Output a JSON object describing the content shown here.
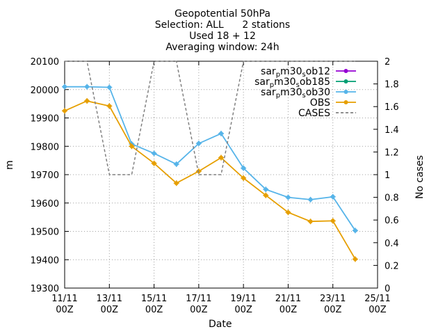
{
  "chart_data": {
    "type": "line",
    "title_lines": [
      "Geopotential 50hPa",
      "Selection: ALL      2 stations",
      "Used 18 + 12",
      "Averaging window: 24h"
    ],
    "xlabel": "Date",
    "ylabel": "m",
    "y2label": "No cases",
    "xlim": [
      0,
      14
    ],
    "ylim": [
      19300,
      20100
    ],
    "y2lim": [
      0,
      2
    ],
    "x_tick_positions": [
      0,
      2,
      4,
      6,
      8,
      10,
      12,
      14
    ],
    "x_tick_labels": [
      [
        "11/11",
        "00Z"
      ],
      [
        "13/11",
        "00Z"
      ],
      [
        "15/11",
        "00Z"
      ],
      [
        "17/11",
        "00Z"
      ],
      [
        "19/11",
        "00Z"
      ],
      [
        "21/11",
        "00Z"
      ],
      [
        "23/11",
        "00Z"
      ],
      [
        "25/11",
        "00Z"
      ]
    ],
    "y_ticks": [
      19300,
      19400,
      19500,
      19600,
      19700,
      19800,
      19900,
      20000,
      20100
    ],
    "y2_ticks": [
      0,
      0.2,
      0.4,
      0.6,
      0.8,
      1,
      1.2,
      1.4,
      1.6,
      1.8,
      2
    ],
    "y2_tick_labels": [
      "0",
      "0.2",
      "0.4",
      "0.6",
      "0.8",
      "1",
      "1.2",
      "1.4",
      "1.6",
      "1.8",
      "2"
    ],
    "grid": true,
    "legend_position": "top-right",
    "series": [
      {
        "name_main": "sar",
        "name_parts": [
          [
            "sar",
            ""
          ],
          [
            "p",
            "sub"
          ],
          [
            "m30",
            ""
          ],
          [
            "s",
            "sub"
          ],
          [
            "ob12",
            ""
          ]
        ],
        "color": "#9400d3",
        "x": [],
        "values": []
      },
      {
        "name_main": "sar",
        "name_parts": [
          [
            "sar",
            ""
          ],
          [
            "p",
            "sub"
          ],
          [
            "m30",
            ""
          ],
          [
            "s",
            "sub"
          ],
          [
            "ob185",
            ""
          ]
        ],
        "color": "#009e73",
        "x": [],
        "values": []
      },
      {
        "name_main": "sar",
        "name_parts": [
          [
            "sar",
            ""
          ],
          [
            "p",
            "sub"
          ],
          [
            "m30",
            ""
          ],
          [
            "s",
            "sub"
          ],
          [
            "ob30",
            ""
          ]
        ],
        "color": "#56b4e9",
        "x": [
          0,
          1,
          2,
          3,
          4,
          5,
          6,
          7,
          8,
          9,
          10,
          11,
          12,
          13
        ],
        "values": [
          20010,
          20010,
          20008,
          19808,
          19775,
          19737,
          19810,
          19845,
          19723,
          19648,
          19620,
          19612,
          19622,
          19503
        ]
      },
      {
        "name": "OBS",
        "color": "#e69f00",
        "x": [
          0,
          1,
          2,
          3,
          4,
          5,
          6,
          7,
          8,
          9,
          10,
          11,
          12,
          13
        ],
        "values": [
          19925,
          19960,
          19942,
          19800,
          19740,
          19670,
          19712,
          19760,
          19688,
          19627,
          19567,
          19535,
          19537,
          19402
        ]
      },
      {
        "name": "CASES",
        "color": "#808080",
        "axis": "y2",
        "dashed": true,
        "x": [
          0,
          1,
          2,
          3,
          4,
          5,
          6,
          7,
          8,
          9,
          10,
          11,
          12,
          13
        ],
        "values": [
          2,
          2,
          1,
          1,
          2,
          2,
          1,
          1,
          2,
          2,
          2,
          2,
          2,
          2
        ]
      }
    ]
  }
}
